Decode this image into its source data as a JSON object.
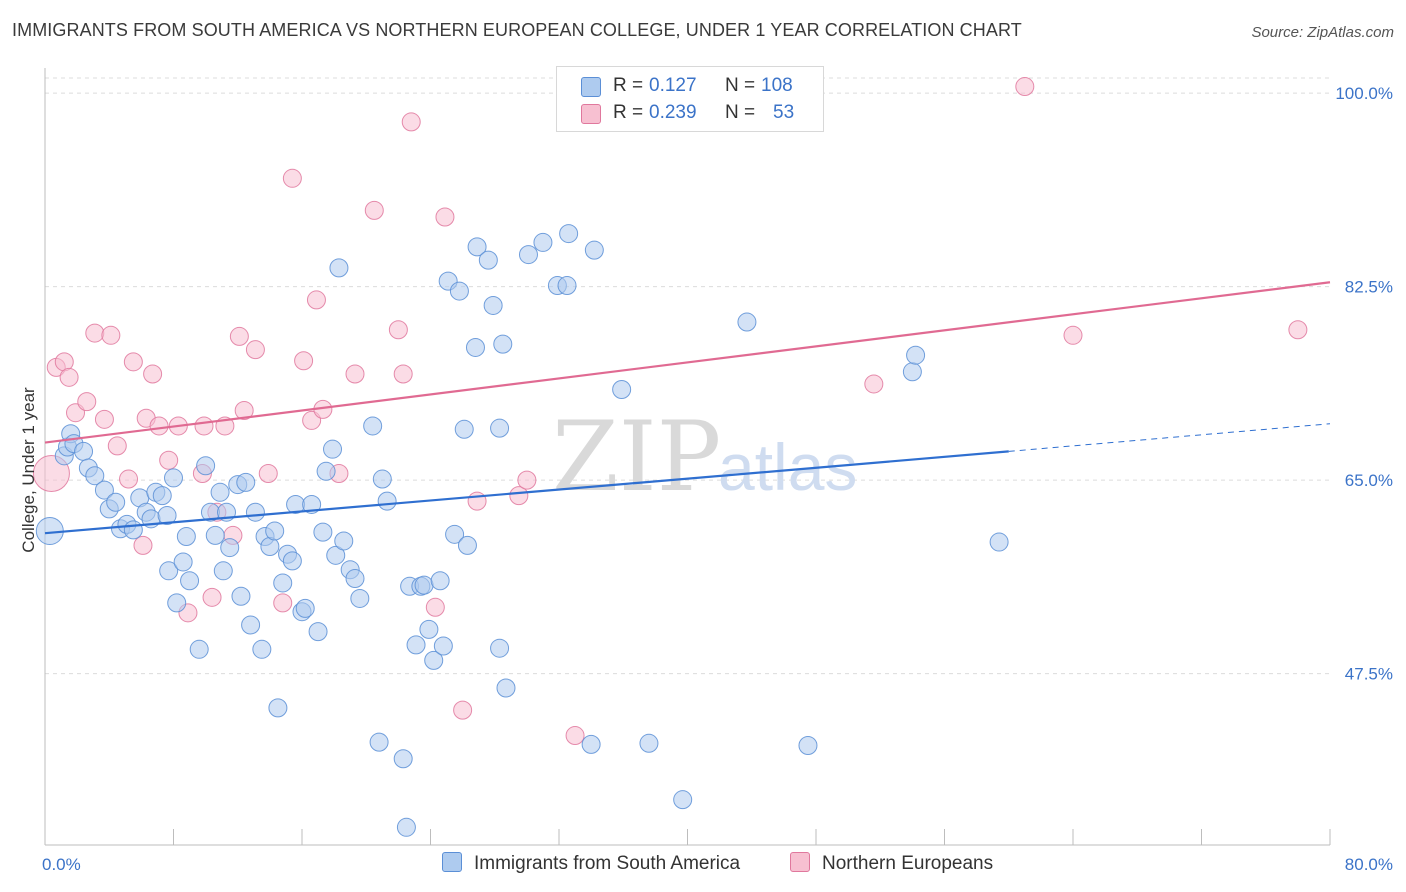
{
  "title": "IMMIGRANTS FROM SOUTH AMERICA VS NORTHERN EUROPEAN COLLEGE, UNDER 1 YEAR CORRELATION CHART",
  "source": "Source: ZipAtlas.com",
  "watermark": {
    "zip": "ZIP",
    "atlas": "atlas"
  },
  "legend": {
    "r_label": "R =",
    "n_label": "N =",
    "series": [
      {
        "name": "Immigrants from South America",
        "r": "0.127",
        "n": "108",
        "color": "#5b8fd6",
        "fill": "#aecbef"
      },
      {
        "name": "Northern Europeans",
        "r": "0.239",
        "n": "53",
        "color": "#e0789d",
        "fill": "#f7c0d1"
      }
    ]
  },
  "chart_data": {
    "type": "scatter",
    "title": "IMMIGRANTS FROM SOUTH AMERICA VS NORTHERN EUROPEAN COLLEGE, UNDER 1 YEAR CORRELATION CHART",
    "xlabel": "",
    "ylabel": "College, Under 1 year",
    "xlim": [
      0,
      80
    ],
    "ylim": [
      32,
      103
    ],
    "x_tick_labels": [
      "0.0%",
      "80.0%"
    ],
    "y_ticks": [
      47.5,
      65.0,
      82.5,
      100.0
    ],
    "y_tick_labels": [
      "47.5%",
      "65.0%",
      "82.5%",
      "100.0%"
    ],
    "grid": true,
    "series": [
      {
        "name": "Immigrants from South America",
        "color": "#5b8fd6",
        "trend": {
          "x0": 0,
          "y0": 60.2,
          "x1": 60,
          "y1": 67.6,
          "dash_to_x": 80,
          "dash_to_y": 70.1
        },
        "points": [
          [
            0.3,
            60.4,
            1.5
          ],
          [
            1.2,
            67.2,
            1
          ],
          [
            1.4,
            68.0,
            1
          ],
          [
            1.6,
            69.2,
            1
          ],
          [
            1.8,
            68.3,
            1
          ],
          [
            2.4,
            67.6,
            1
          ],
          [
            2.7,
            66.1,
            1
          ],
          [
            3.1,
            65.4,
            1
          ],
          [
            3.7,
            64.1,
            1
          ],
          [
            4.0,
            62.4,
            1
          ],
          [
            4.4,
            63.0,
            1
          ],
          [
            4.7,
            60.6,
            1
          ],
          [
            5.1,
            61.0,
            1
          ],
          [
            5.5,
            60.5,
            1
          ],
          [
            5.9,
            63.4,
            1
          ],
          [
            6.3,
            62.1,
            1
          ],
          [
            6.6,
            61.5,
            1
          ],
          [
            6.9,
            63.9,
            1
          ],
          [
            7.3,
            63.6,
            1
          ],
          [
            7.6,
            61.8,
            1
          ],
          [
            7.7,
            56.8,
            1
          ],
          [
            8.0,
            65.2,
            1
          ],
          [
            8.2,
            53.9,
            1
          ],
          [
            8.6,
            57.6,
            1
          ],
          [
            8.8,
            59.9,
            1
          ],
          [
            9.0,
            55.9,
            1
          ],
          [
            9.6,
            49.7,
            1
          ],
          [
            10.0,
            66.3,
            1
          ],
          [
            10.3,
            62.1,
            1
          ],
          [
            10.6,
            60.0,
            1
          ],
          [
            10.9,
            63.9,
            1
          ],
          [
            11.1,
            56.8,
            1
          ],
          [
            11.3,
            62.1,
            1
          ],
          [
            11.5,
            58.9,
            1
          ],
          [
            12.0,
            64.6,
            1
          ],
          [
            12.2,
            54.5,
            1
          ],
          [
            12.5,
            64.8,
            1
          ],
          [
            12.8,
            51.9,
            1
          ],
          [
            13.1,
            62.1,
            1
          ],
          [
            13.5,
            49.7,
            1
          ],
          [
            13.7,
            59.9,
            1
          ],
          [
            14.0,
            59.0,
            1
          ],
          [
            14.3,
            60.4,
            1
          ],
          [
            14.5,
            44.4,
            1
          ],
          [
            14.8,
            55.7,
            1
          ],
          [
            15.1,
            58.3,
            1
          ],
          [
            15.4,
            57.7,
            1
          ],
          [
            15.6,
            62.8,
            1
          ],
          [
            16.0,
            53.1,
            1
          ],
          [
            16.2,
            53.4,
            1
          ],
          [
            16.6,
            62.8,
            1
          ],
          [
            17.0,
            51.3,
            1
          ],
          [
            17.3,
            60.3,
            1
          ],
          [
            17.5,
            65.8,
            1
          ],
          [
            17.9,
            67.8,
            1
          ],
          [
            18.1,
            58.2,
            1
          ],
          [
            18.3,
            84.2,
            1
          ],
          [
            18.6,
            59.5,
            1
          ],
          [
            19.0,
            56.9,
            1
          ],
          [
            19.3,
            56.1,
            1
          ],
          [
            19.6,
            54.3,
            1
          ],
          [
            20.4,
            69.9,
            1
          ],
          [
            20.8,
            41.3,
            1
          ],
          [
            21.0,
            65.1,
            1
          ],
          [
            21.3,
            63.1,
            1
          ],
          [
            22.3,
            39.8,
            1
          ],
          [
            22.5,
            33.6,
            1
          ],
          [
            22.7,
            55.4,
            1
          ],
          [
            23.1,
            50.1,
            1
          ],
          [
            23.4,
            55.4,
            1
          ],
          [
            23.6,
            55.5,
            1
          ],
          [
            23.9,
            51.5,
            1
          ],
          [
            24.2,
            48.7,
            1
          ],
          [
            24.6,
            55.9,
            1
          ],
          [
            24.8,
            50.0,
            1
          ],
          [
            25.1,
            83.0,
            1
          ],
          [
            25.5,
            60.1,
            1
          ],
          [
            25.8,
            82.1,
            1
          ],
          [
            26.1,
            69.6,
            1
          ],
          [
            26.3,
            59.1,
            1
          ],
          [
            26.8,
            77.0,
            1
          ],
          [
            26.9,
            86.1,
            1
          ],
          [
            27.6,
            84.9,
            1
          ],
          [
            27.9,
            80.8,
            1
          ],
          [
            28.3,
            49.8,
            1
          ],
          [
            28.5,
            77.3,
            1
          ],
          [
            28.3,
            69.7,
            1
          ],
          [
            28.7,
            46.2,
            1
          ],
          [
            30.1,
            85.4,
            1
          ],
          [
            31.0,
            86.5,
            1
          ],
          [
            31.9,
            82.6,
            1
          ],
          [
            32.6,
            87.3,
            1
          ],
          [
            32.5,
            82.6,
            1
          ],
          [
            34.0,
            41.1,
            1
          ],
          [
            34.2,
            85.8,
            1
          ],
          [
            35.9,
            73.2,
            1
          ],
          [
            37.6,
            41.2,
            1
          ],
          [
            39.7,
            36.1,
            1
          ],
          [
            43.7,
            79.3,
            1
          ],
          [
            47.5,
            41.0,
            1
          ],
          [
            54.0,
            74.8,
            1
          ],
          [
            54.2,
            76.3,
            1
          ],
          [
            59.4,
            59.4,
            1
          ]
        ]
      },
      {
        "name": "Northern Europeans",
        "color": "#e0789d",
        "trend": {
          "x0": 0,
          "y0": 68.4,
          "x1": 80,
          "y1": 82.9
        },
        "points": [
          [
            0.4,
            65.6,
            2
          ],
          [
            0.7,
            75.2,
            1
          ],
          [
            1.2,
            75.7,
            1
          ],
          [
            1.5,
            74.3,
            1
          ],
          [
            1.9,
            71.1,
            1
          ],
          [
            2.6,
            72.1,
            1
          ],
          [
            3.1,
            78.3,
            1
          ],
          [
            3.7,
            70.5,
            1
          ],
          [
            4.1,
            78.1,
            1
          ],
          [
            4.5,
            68.1,
            1
          ],
          [
            5.2,
            65.1,
            1
          ],
          [
            5.5,
            75.7,
            1
          ],
          [
            6.1,
            59.1,
            1
          ],
          [
            6.3,
            70.6,
            1
          ],
          [
            6.7,
            74.6,
            1
          ],
          [
            7.1,
            69.9,
            1
          ],
          [
            7.7,
            66.8,
            1
          ],
          [
            8.3,
            69.9,
            1
          ],
          [
            8.9,
            53.0,
            1
          ],
          [
            9.8,
            65.6,
            1
          ],
          [
            9.9,
            69.9,
            1
          ],
          [
            10.4,
            54.4,
            1
          ],
          [
            10.7,
            62.1,
            1
          ],
          [
            11.2,
            69.9,
            1
          ],
          [
            11.7,
            60.0,
            1
          ],
          [
            12.1,
            78.0,
            1
          ],
          [
            12.4,
            71.3,
            1
          ],
          [
            13.1,
            76.8,
            1
          ],
          [
            13.9,
            65.6,
            1
          ],
          [
            14.8,
            53.9,
            1
          ],
          [
            15.4,
            92.3,
            1
          ],
          [
            16.1,
            75.8,
            1
          ],
          [
            16.6,
            70.4,
            1
          ],
          [
            16.9,
            81.3,
            1
          ],
          [
            17.3,
            71.4,
            1
          ],
          [
            18.3,
            65.6,
            1
          ],
          [
            19.3,
            74.6,
            1
          ],
          [
            20.5,
            89.4,
            1
          ],
          [
            22.0,
            78.6,
            1
          ],
          [
            22.3,
            74.6,
            1
          ],
          [
            22.8,
            97.4,
            1
          ],
          [
            24.3,
            53.5,
            1
          ],
          [
            24.9,
            88.8,
            1
          ],
          [
            26.0,
            44.2,
            1
          ],
          [
            26.9,
            63.1,
            1
          ],
          [
            29.5,
            63.6,
            1
          ],
          [
            30.0,
            65.0,
            1
          ],
          [
            33.0,
            41.9,
            1
          ],
          [
            38.0,
            100.6,
            1
          ],
          [
            51.6,
            73.7,
            1
          ],
          [
            61.0,
            100.6,
            1
          ],
          [
            64.0,
            78.1,
            1
          ],
          [
            78.0,
            78.6,
            1
          ]
        ]
      }
    ]
  }
}
